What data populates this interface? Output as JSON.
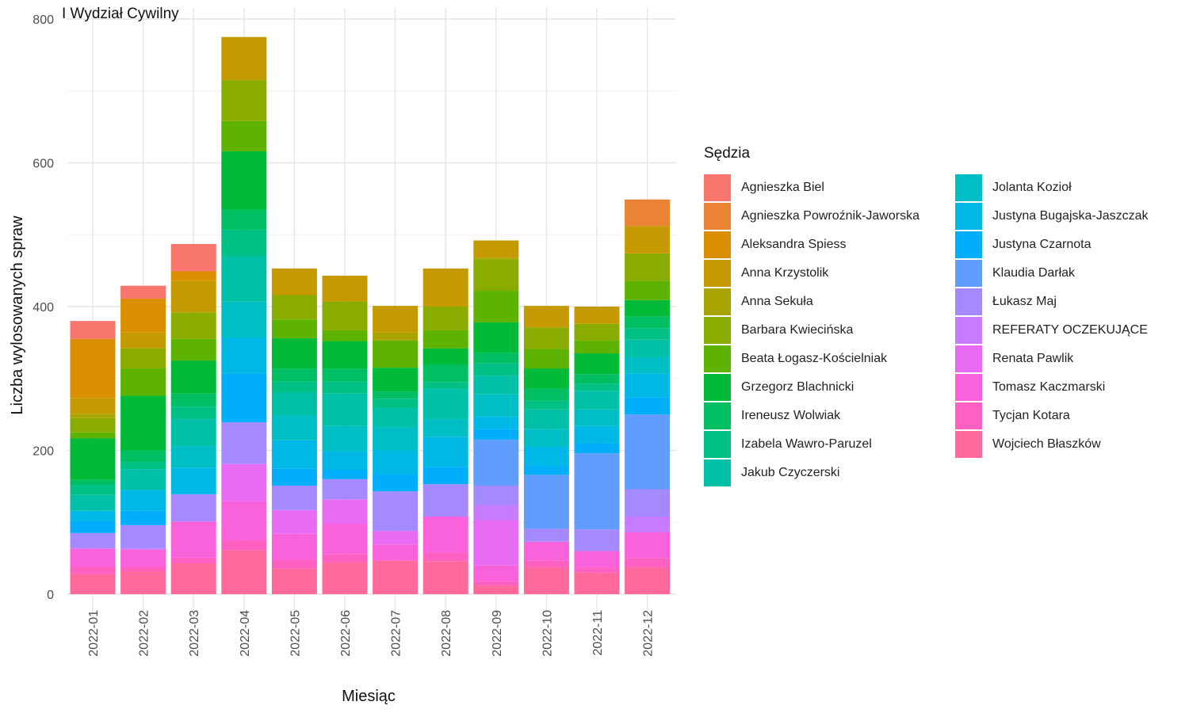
{
  "title": "I Wydział Cywilny",
  "chart_data": {
    "type": "bar",
    "stacked": true,
    "xlabel": "Miesiąc",
    "ylabel": "Liczba wylosowanych spraw",
    "ylim": [
      0,
      800
    ],
    "yticks": [
      0,
      200,
      400,
      600,
      800
    ],
    "grid": true,
    "legend_title": "Sędzia",
    "legend_position": "right",
    "categories": [
      "2022-01",
      "2022-02",
      "2022-03",
      "2022-04",
      "2022-05",
      "2022-06",
      "2022-07",
      "2022-08",
      "2022-09",
      "2022-10",
      "2022-11",
      "2022-12"
    ],
    "series": [
      {
        "name": "Agnieszka Biel",
        "color": "#F8766D",
        "values": [
          25,
          18,
          38,
          0,
          0,
          0,
          0,
          0,
          0,
          0,
          0,
          0
        ]
      },
      {
        "name": "Agnieszka Powroźnik-Jaworska",
        "color": "#EB8335",
        "values": [
          0,
          0,
          0,
          0,
          0,
          0,
          0,
          0,
          0,
          0,
          0,
          37
        ]
      },
      {
        "name": "Aleksandra Spiess",
        "color": "#DA8F00",
        "values": [
          82,
          47,
          13,
          0,
          0,
          0,
          0,
          0,
          0,
          0,
          0,
          0
        ]
      },
      {
        "name": "Anna Krzystolik",
        "color": "#C49A00",
        "values": [
          22,
          22,
          44,
          60,
          37,
          36,
          37,
          53,
          24,
          30,
          24,
          38
        ]
      },
      {
        "name": "Anna Sekuła",
        "color": "#AAA400",
        "values": [
          6,
          0,
          0,
          0,
          0,
          0,
          11,
          0,
          2,
          0,
          0,
          0
        ]
      },
      {
        "name": "Barbara Kwiecińska",
        "color": "#8AAB00",
        "values": [
          20,
          28,
          37,
          57,
          34,
          40,
          0,
          33,
          44,
          30,
          23,
          38
        ]
      },
      {
        "name": "Beata Łogasz-Kościelniak",
        "color": "#5EB300",
        "values": [
          8,
          38,
          30,
          42,
          26,
          15,
          38,
          25,
          44,
          27,
          18,
          27
        ]
      },
      {
        "name": "Grzegorz Blachnicki",
        "color": "#00BA38",
        "values": [
          58,
          76,
          46,
          81,
          42,
          38,
          33,
          23,
          42,
          28,
          29,
          23
        ]
      },
      {
        "name": "Ireneusz Wolwiak",
        "color": "#00BF62",
        "values": [
          7,
          16,
          18,
          28,
          18,
          18,
          10,
          24,
          15,
          17,
          13,
          16
        ]
      },
      {
        "name": "Izabela Wawro-Paruzel",
        "color": "#00C086",
        "values": [
          14,
          10,
          17,
          37,
          15,
          17,
          13,
          9,
          17,
          12,
          10,
          16
        ]
      },
      {
        "name": "Jakub Czyczerski",
        "color": "#00C1A7",
        "values": [
          22,
          29,
          38,
          63,
          32,
          45,
          27,
          42,
          26,
          27,
          26,
          24
        ]
      },
      {
        "name": "Jolanta Kozioł",
        "color": "#00BFC4",
        "values": [
          0,
          0,
          30,
          50,
          35,
          35,
          32,
          25,
          31,
          25,
          23,
          23
        ]
      },
      {
        "name": "Justyna Bugajska-Jaszczak",
        "color": "#00B8E5",
        "values": [
          14,
          29,
          37,
          50,
          39,
          26,
          33,
          42,
          17,
          27,
          24,
          33
        ]
      },
      {
        "name": "Justyna Czarnota",
        "color": "#00AEFA",
        "values": [
          17,
          20,
          0,
          68,
          24,
          13,
          24,
          24,
          15,
          12,
          14,
          24
        ]
      },
      {
        "name": "Klaudia Darłak",
        "color": "#619CFF",
        "values": [
          0,
          0,
          0,
          0,
          0,
          0,
          0,
          0,
          64,
          75,
          106,
          104
        ]
      },
      {
        "name": "Łukasz Maj",
        "color": "#A58AFF",
        "values": [
          20,
          32,
          38,
          58,
          34,
          28,
          55,
          45,
          27,
          18,
          30,
          38
        ]
      },
      {
        "name": "REFERATY OCZEKUJĄCE",
        "color": "#C77CFF",
        "values": [
          2,
          2,
          0,
          0,
          0,
          0,
          0,
          0,
          21,
          0,
          0,
          22
        ]
      },
      {
        "name": "Renata Pawlik",
        "color": "#E76BF3",
        "values": [
          0,
          0,
          0,
          52,
          33,
          34,
          19,
          0,
          63,
          0,
          0,
          0
        ]
      },
      {
        "name": "Tomasz Kaczmarski",
        "color": "#FA62DB",
        "values": [
          25,
          24,
          50,
          54,
          36,
          42,
          22,
          50,
          22,
          26,
          23,
          36
        ]
      },
      {
        "name": "Tycjan Kotara",
        "color": "#FF61C3",
        "values": [
          10,
          6,
          8,
          14,
          12,
          12,
          0,
          12,
          6,
          10,
          7,
          13
        ]
      },
      {
        "name": "Wojciech Błaszków",
        "color": "#FF699C",
        "values": [
          28,
          32,
          43,
          61,
          36,
          44,
          47,
          46,
          12,
          37,
          30,
          37
        ]
      }
    ]
  }
}
